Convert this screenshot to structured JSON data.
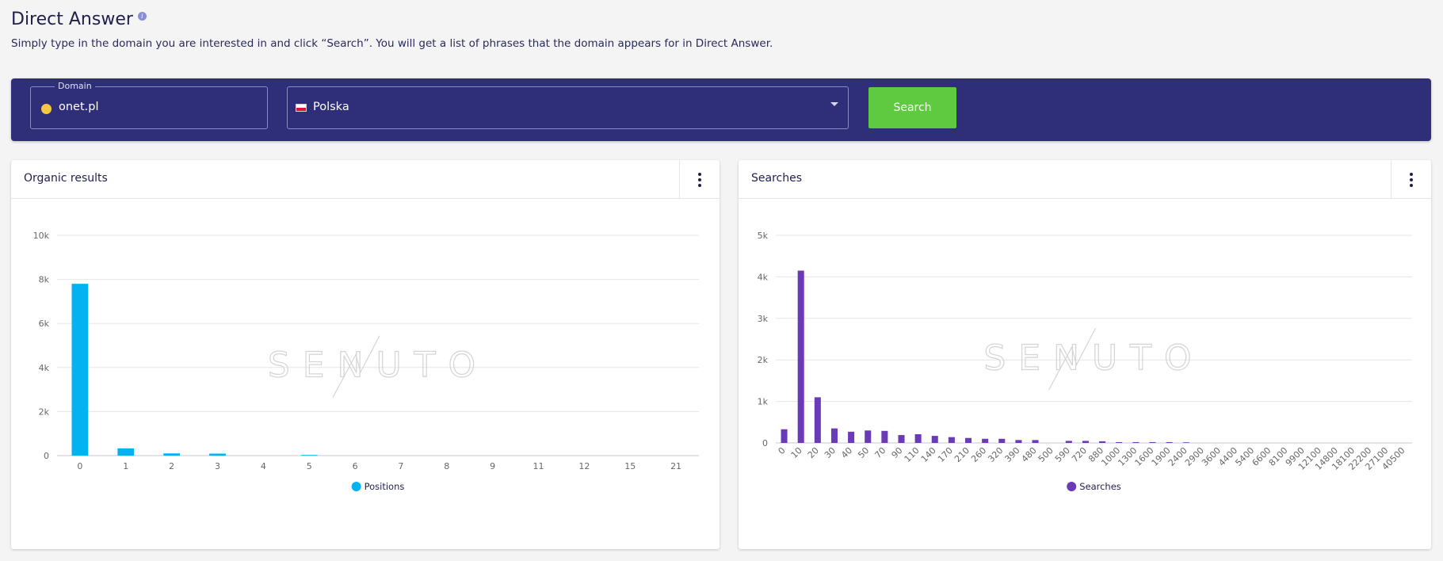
{
  "page": {
    "title": "Direct Answer",
    "info_icon": "info-icon",
    "subtitle": "Simply type in the domain you are interested in and click “Search”. You will get a list of phrases that the domain appears for in Direct Answer."
  },
  "search": {
    "domain_label": "Domain",
    "domain_value": "onet.pl",
    "country_value": "Polska",
    "button_label": "Search"
  },
  "colors": {
    "header_bar": "#2e2f78",
    "search_button": "#5fc940",
    "positions_series": "#03b2f1",
    "searches_series": "#6a3ab8"
  },
  "charts": {
    "watermark": "SENUTO",
    "organic": {
      "title": "Organic results",
      "menu_icon": "more-vertical-icon"
    },
    "searches": {
      "title": "Searches",
      "menu_icon": "more-vertical-icon"
    }
  },
  "chart_data": [
    {
      "type": "bar",
      "title": "Organic results",
      "categories": [
        "0",
        "1",
        "2",
        "3",
        "4",
        "5",
        "6",
        "7",
        "8",
        "9",
        "11",
        "12",
        "15",
        "21"
      ],
      "series": [
        {
          "name": "Positions",
          "color": "#03b2f1",
          "values": [
            7800,
            330,
            100,
            90,
            0,
            30,
            0,
            0,
            0,
            0,
            0,
            0,
            0,
            0
          ]
        }
      ],
      "ylim": [
        0,
        10000
      ],
      "yticks": [
        "0",
        "2k",
        "4k",
        "6k",
        "8k",
        "10k"
      ],
      "grid": true,
      "legend": "bottom-center"
    },
    {
      "type": "bar",
      "title": "Searches",
      "categories": [
        "0",
        "10",
        "20",
        "30",
        "40",
        "50",
        "70",
        "90",
        "110",
        "140",
        "170",
        "210",
        "260",
        "320",
        "390",
        "480",
        "500",
        "590",
        "720",
        "880",
        "1000",
        "1300",
        "1600",
        "1900",
        "2400",
        "2900",
        "3600",
        "4400",
        "5400",
        "6600",
        "8100",
        "9900",
        "12100",
        "14800",
        "18100",
        "22200",
        "27100",
        "40500"
      ],
      "series": [
        {
          "name": "Searches",
          "color": "#6a3ab8",
          "values": [
            330,
            4150,
            1100,
            350,
            270,
            300,
            290,
            190,
            210,
            170,
            140,
            120,
            100,
            100,
            70,
            70,
            0,
            50,
            50,
            40,
            20,
            20,
            20,
            20,
            15,
            0,
            0,
            0,
            0,
            0,
            0,
            0,
            0,
            0,
            0,
            0,
            0,
            0
          ]
        }
      ],
      "ylim": [
        0,
        5000
      ],
      "yticks": [
        "0",
        "1k",
        "2k",
        "3k",
        "4k",
        "5k"
      ],
      "grid": true,
      "legend": "bottom-center"
    }
  ]
}
